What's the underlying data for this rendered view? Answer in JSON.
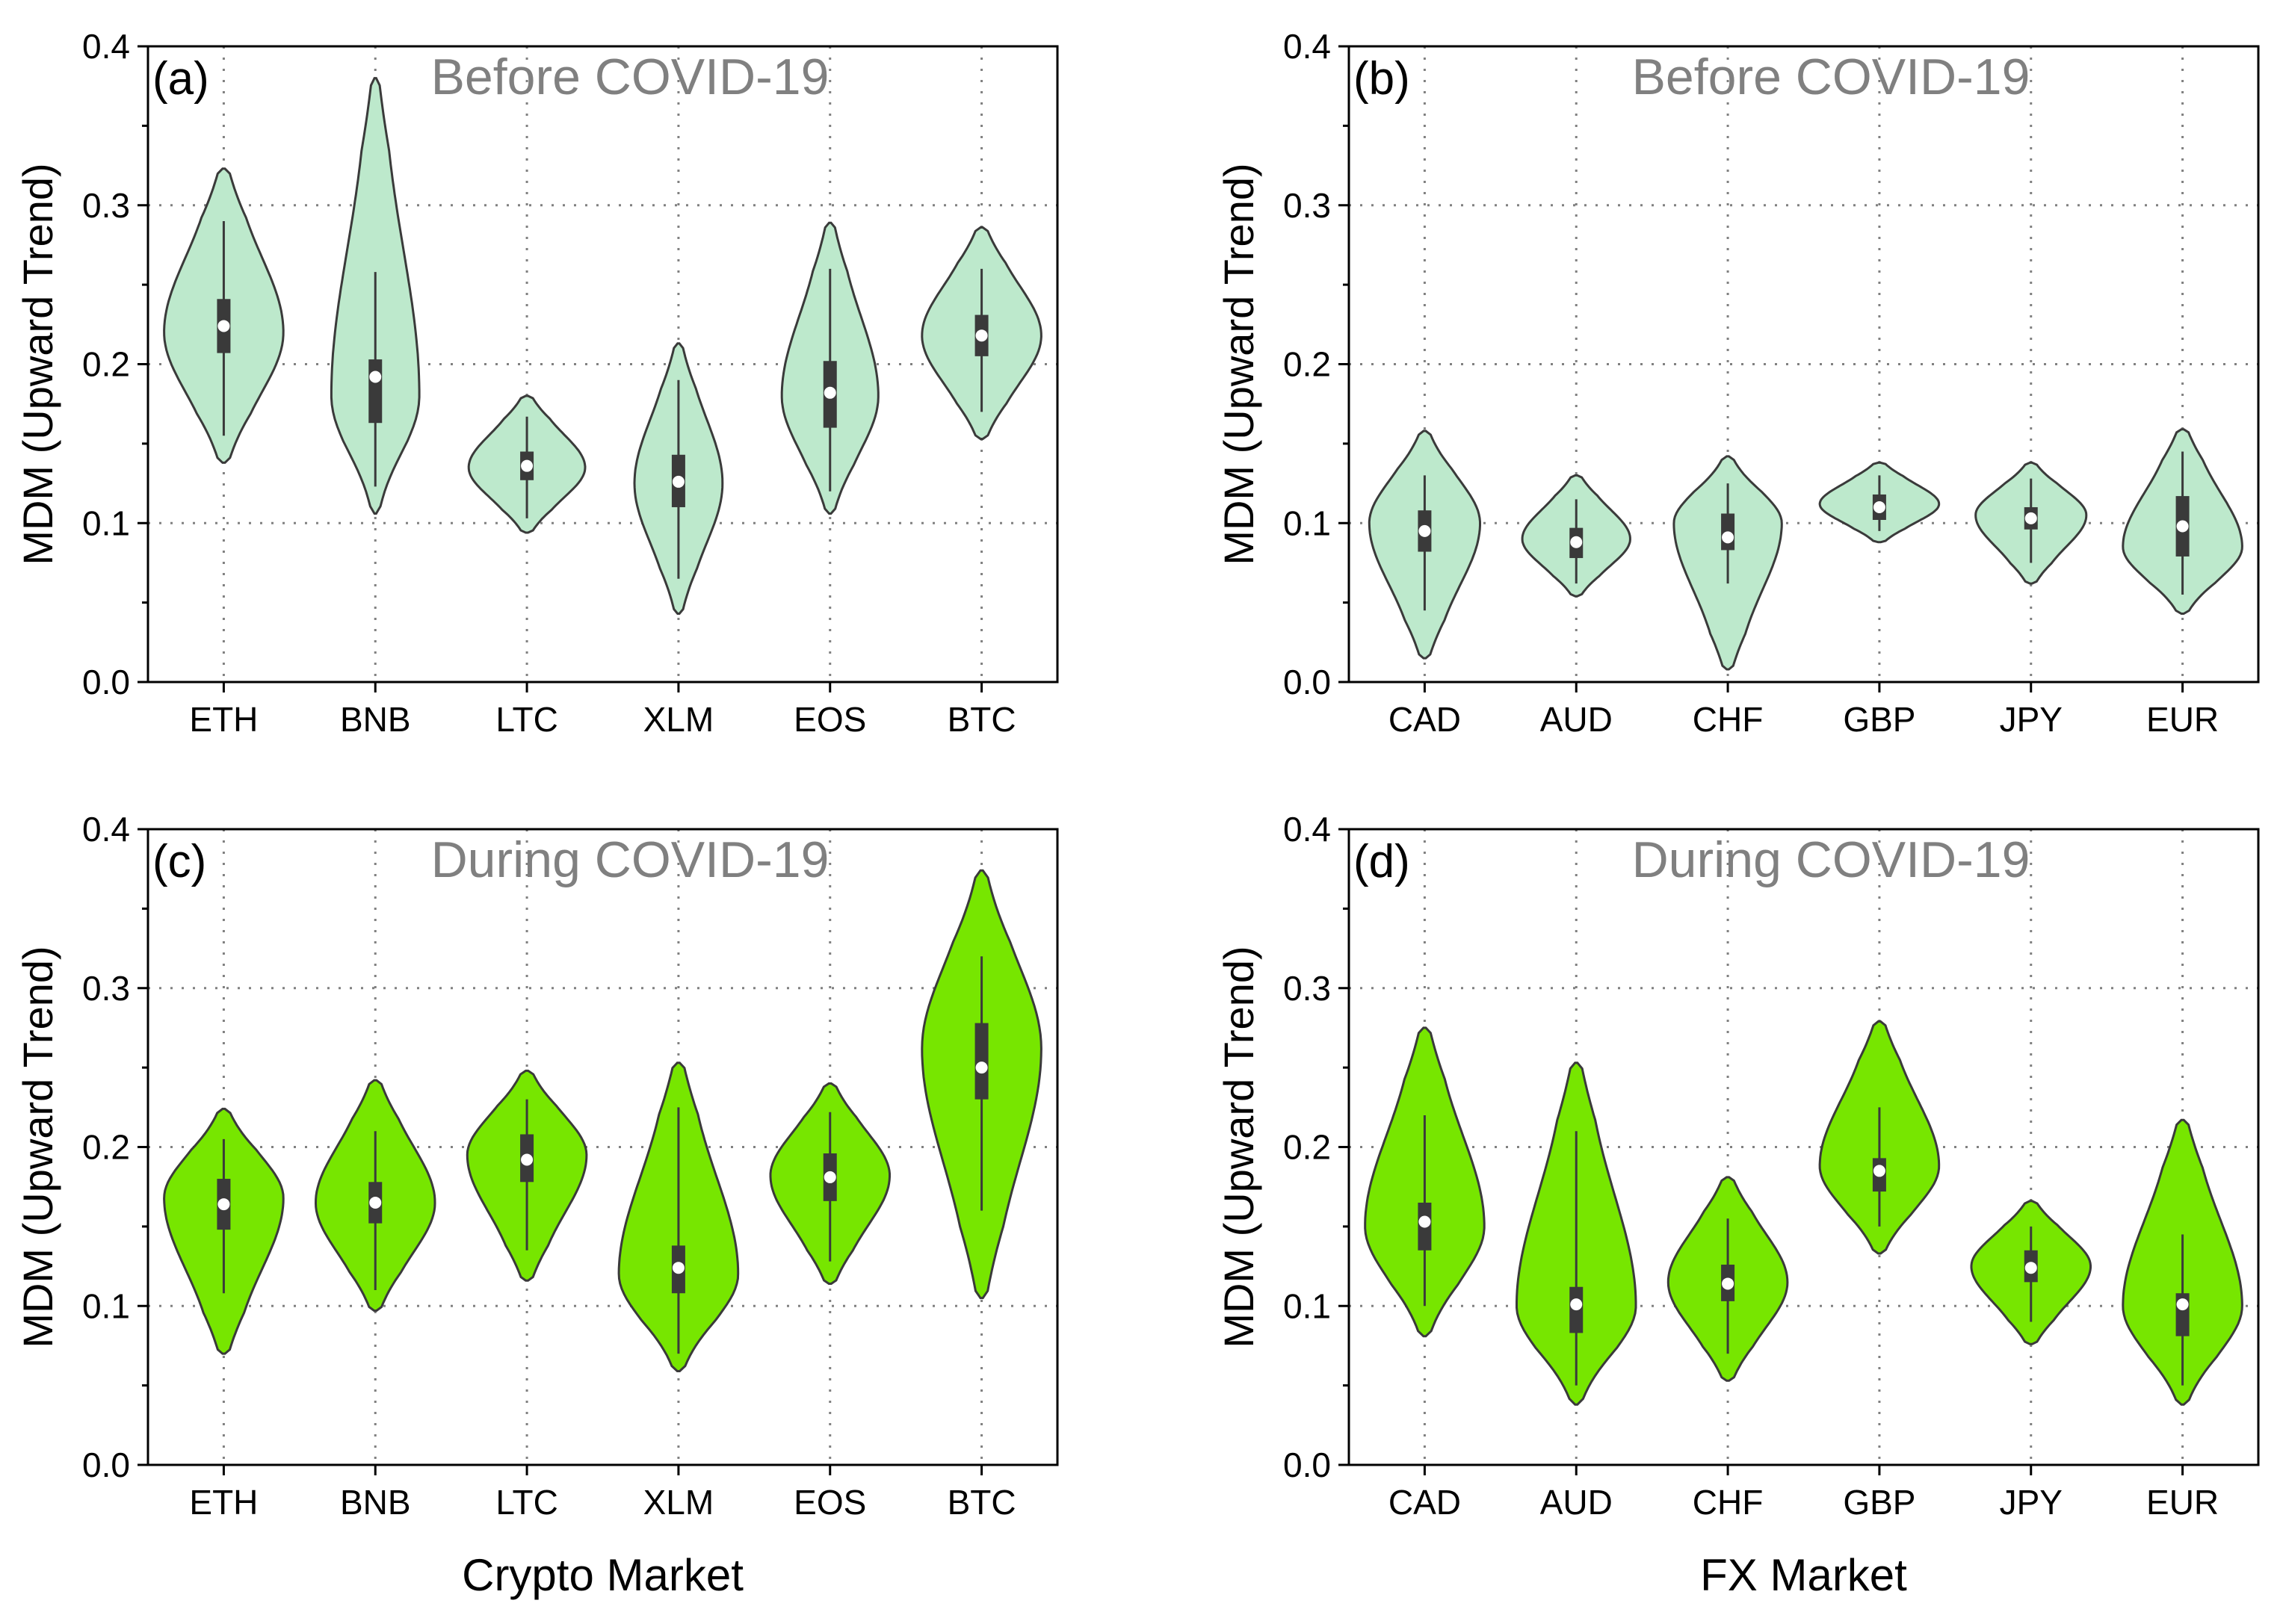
{
  "colors": {
    "before_fill": "#bde9cc",
    "during_fill": "#77e600",
    "outline": "#3a3a3a",
    "box": "#3a3a3a",
    "median_dot": "#ffffff",
    "grid": "#808080",
    "title_text": "#808080"
  },
  "chart_data": [
    {
      "id": "a",
      "type": "violin",
      "panel_label": "(a)",
      "title": "Before COVID-19",
      "ylabel": "MDM (Upward Trend)",
      "xlabel": "",
      "ylim": [
        0.0,
        0.4
      ],
      "yticks": [
        "0.0",
        "0.1",
        "0.2",
        "0.3",
        "0.4"
      ],
      "grid": true,
      "fill": "before",
      "categories": [
        "ETH",
        "BNB",
        "LTC",
        "XLM",
        "EOS",
        "BTC"
      ],
      "violins": [
        {
          "min": 0.138,
          "max": 0.323,
          "q1": 0.207,
          "median": 0.224,
          "q3": 0.241,
          "wlo": 0.155,
          "whi": 0.29,
          "mode": 0.22,
          "hw": 0.84
        },
        {
          "min": 0.106,
          "max": 0.38,
          "q1": 0.163,
          "median": 0.192,
          "q3": 0.203,
          "wlo": 0.123,
          "whi": 0.258,
          "mode": 0.18,
          "hw": 0.62
        },
        {
          "min": 0.094,
          "max": 0.18,
          "q1": 0.127,
          "median": 0.136,
          "q3": 0.145,
          "wlo": 0.103,
          "whi": 0.167,
          "mode": 0.135,
          "hw": 0.82
        },
        {
          "min": 0.043,
          "max": 0.213,
          "q1": 0.11,
          "median": 0.126,
          "q3": 0.143,
          "wlo": 0.065,
          "whi": 0.19,
          "mode": 0.125,
          "hw": 0.62
        },
        {
          "min": 0.106,
          "max": 0.289,
          "q1": 0.16,
          "median": 0.182,
          "q3": 0.202,
          "wlo": 0.12,
          "whi": 0.26,
          "mode": 0.18,
          "hw": 0.68
        },
        {
          "min": 0.153,
          "max": 0.286,
          "q1": 0.205,
          "median": 0.218,
          "q3": 0.231,
          "wlo": 0.17,
          "whi": 0.26,
          "mode": 0.218,
          "hw": 0.84
        }
      ]
    },
    {
      "id": "b",
      "type": "violin",
      "panel_label": "(b)",
      "title": "Before COVID-19",
      "ylabel": "MDM (Upward Trend)",
      "xlabel": "",
      "ylim": [
        0.0,
        0.4
      ],
      "yticks": [
        "0.0",
        "0.1",
        "0.2",
        "0.3",
        "0.4"
      ],
      "grid": true,
      "fill": "before",
      "categories": [
        "CAD",
        "AUD",
        "CHF",
        "GBP",
        "JPY",
        "EUR"
      ],
      "violins": [
        {
          "min": 0.015,
          "max": 0.158,
          "q1": 0.082,
          "median": 0.095,
          "q3": 0.108,
          "wlo": 0.045,
          "whi": 0.13,
          "mode": 0.1,
          "hw": 0.78
        },
        {
          "min": 0.054,
          "max": 0.13,
          "q1": 0.078,
          "median": 0.088,
          "q3": 0.097,
          "wlo": 0.062,
          "whi": 0.115,
          "mode": 0.09,
          "hw": 0.76
        },
        {
          "min": 0.008,
          "max": 0.142,
          "q1": 0.083,
          "median": 0.091,
          "q3": 0.106,
          "wlo": 0.062,
          "whi": 0.125,
          "mode": 0.1,
          "hw": 0.76
        },
        {
          "min": 0.088,
          "max": 0.138,
          "q1": 0.102,
          "median": 0.11,
          "q3": 0.118,
          "wlo": 0.095,
          "whi": 0.13,
          "mode": 0.112,
          "hw": 0.84
        },
        {
          "min": 0.062,
          "max": 0.138,
          "q1": 0.096,
          "median": 0.103,
          "q3": 0.11,
          "wlo": 0.075,
          "whi": 0.128,
          "mode": 0.105,
          "hw": 0.78
        },
        {
          "min": 0.043,
          "max": 0.159,
          "q1": 0.079,
          "median": 0.098,
          "q3": 0.117,
          "wlo": 0.055,
          "whi": 0.145,
          "mode": 0.085,
          "hw": 0.84
        }
      ]
    },
    {
      "id": "c",
      "type": "violin",
      "panel_label": "(c)",
      "title": "During COVID-19",
      "ylabel": "MDM (Upward Trend)",
      "xlabel": "Crypto Market",
      "ylim": [
        0.0,
        0.4
      ],
      "yticks": [
        "0.0",
        "0.1",
        "0.2",
        "0.3",
        "0.4"
      ],
      "grid": true,
      "fill": "during",
      "categories": [
        "ETH",
        "BNB",
        "LTC",
        "XLM",
        "EOS",
        "BTC"
      ],
      "violins": [
        {
          "min": 0.07,
          "max": 0.224,
          "q1": 0.148,
          "median": 0.164,
          "q3": 0.18,
          "wlo": 0.108,
          "whi": 0.205,
          "mode": 0.168,
          "hw": 0.84
        },
        {
          "min": 0.097,
          "max": 0.242,
          "q1": 0.152,
          "median": 0.165,
          "q3": 0.178,
          "wlo": 0.11,
          "whi": 0.21,
          "mode": 0.165,
          "hw": 0.84
        },
        {
          "min": 0.116,
          "max": 0.248,
          "q1": 0.178,
          "median": 0.192,
          "q3": 0.208,
          "wlo": 0.135,
          "whi": 0.23,
          "mode": 0.195,
          "hw": 0.84
        },
        {
          "min": 0.059,
          "max": 0.253,
          "q1": 0.108,
          "median": 0.124,
          "q3": 0.138,
          "wlo": 0.07,
          "whi": 0.225,
          "mode": 0.12,
          "hw": 0.84
        },
        {
          "min": 0.114,
          "max": 0.24,
          "q1": 0.166,
          "median": 0.181,
          "q3": 0.196,
          "wlo": 0.128,
          "whi": 0.222,
          "mode": 0.182,
          "hw": 0.84
        },
        {
          "min": 0.105,
          "max": 0.374,
          "q1": 0.23,
          "median": 0.25,
          "q3": 0.278,
          "wlo": 0.16,
          "whi": 0.32,
          "mode": 0.262,
          "hw": 0.84
        }
      ]
    },
    {
      "id": "d",
      "type": "violin",
      "panel_label": "(d)",
      "title": "During COVID-19",
      "ylabel": "MDM (Upward Trend)",
      "xlabel": "FX Market",
      "ylim": [
        0.0,
        0.4
      ],
      "yticks": [
        "0.0",
        "0.1",
        "0.2",
        "0.3",
        "0.4"
      ],
      "grid": true,
      "fill": "during",
      "categories": [
        "CAD",
        "AUD",
        "CHF",
        "GBP",
        "JPY",
        "EUR"
      ],
      "violins": [
        {
          "min": 0.081,
          "max": 0.275,
          "q1": 0.135,
          "median": 0.153,
          "q3": 0.165,
          "wlo": 0.1,
          "whi": 0.22,
          "mode": 0.15,
          "hw": 0.84
        },
        {
          "min": 0.038,
          "max": 0.253,
          "q1": 0.083,
          "median": 0.101,
          "q3": 0.112,
          "wlo": 0.05,
          "whi": 0.21,
          "mode": 0.1,
          "hw": 0.84
        },
        {
          "min": 0.053,
          "max": 0.181,
          "q1": 0.103,
          "median": 0.114,
          "q3": 0.126,
          "wlo": 0.07,
          "whi": 0.155,
          "mode": 0.115,
          "hw": 0.84
        },
        {
          "min": 0.133,
          "max": 0.279,
          "q1": 0.172,
          "median": 0.185,
          "q3": 0.193,
          "wlo": 0.15,
          "whi": 0.225,
          "mode": 0.188,
          "hw": 0.84
        },
        {
          "min": 0.076,
          "max": 0.166,
          "q1": 0.115,
          "median": 0.124,
          "q3": 0.135,
          "wlo": 0.09,
          "whi": 0.15,
          "mode": 0.125,
          "hw": 0.84
        },
        {
          "min": 0.038,
          "max": 0.217,
          "q1": 0.081,
          "median": 0.101,
          "q3": 0.108,
          "wlo": 0.05,
          "whi": 0.145,
          "mode": 0.1,
          "hw": 0.84
        }
      ]
    }
  ]
}
